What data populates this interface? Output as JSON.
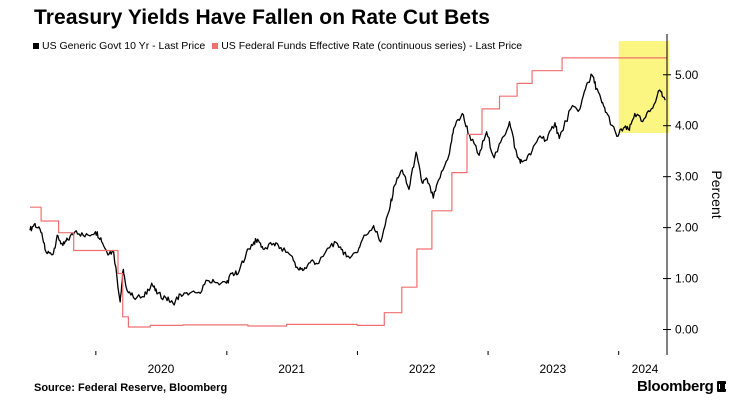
{
  "title": "Treasury Yields Have Fallen on Rate Cut Bets",
  "source": "Source: Federal Reserve, Bloomberg",
  "brand": "Bloomberg",
  "colors": {
    "series_10y": "#000000",
    "series_ffr": "#f07070",
    "highlight": "#fbf582",
    "axis": "#000000"
  },
  "chart_data": {
    "type": "line",
    "ylabel": "Percent",
    "ylim": [
      -0.5,
      5.8
    ],
    "yticks": [
      0,
      1,
      2,
      3,
      4,
      5
    ],
    "ytick_labels": [
      "0.00",
      "1.00",
      "2.00",
      "3.00",
      "4.00",
      "5.00"
    ],
    "xlim": [
      "2019-07-01",
      "2024-05-15"
    ],
    "xticks": [
      "2020",
      "2021",
      "2022",
      "2023",
      "2024"
    ],
    "highlight_range": [
      "2024-01-01",
      "2024-05-15"
    ],
    "grid": false,
    "legend_position": "top-left",
    "series": [
      {
        "name": "US Generic Govt 10 Yr - Last Price",
        "color": "#000000",
        "points": [
          [
            "2019-07-01",
            1.95
          ],
          [
            "2019-07-15",
            2.08
          ],
          [
            "2019-08-01",
            1.9
          ],
          [
            "2019-08-15",
            1.52
          ],
          [
            "2019-09-03",
            1.47
          ],
          [
            "2019-09-15",
            1.85
          ],
          [
            "2019-10-01",
            1.65
          ],
          [
            "2019-10-15",
            1.76
          ],
          [
            "2019-11-07",
            1.94
          ],
          [
            "2019-12-01",
            1.82
          ],
          [
            "2019-12-31",
            1.92
          ],
          [
            "2020-01-15",
            1.8
          ],
          [
            "2020-02-01",
            1.52
          ],
          [
            "2020-02-20",
            1.52
          ],
          [
            "2020-03-09",
            0.54
          ],
          [
            "2020-03-18",
            1.18
          ],
          [
            "2020-03-25",
            0.85
          ],
          [
            "2020-04-15",
            0.63
          ],
          [
            "2020-05-15",
            0.64
          ],
          [
            "2020-06-05",
            0.91
          ],
          [
            "2020-06-20",
            0.7
          ],
          [
            "2020-07-15",
            0.62
          ],
          [
            "2020-08-04",
            0.51
          ],
          [
            "2020-08-25",
            0.69
          ],
          [
            "2020-09-15",
            0.68
          ],
          [
            "2020-10-15",
            0.73
          ],
          [
            "2020-11-09",
            0.96
          ],
          [
            "2020-12-01",
            0.92
          ],
          [
            "2020-12-31",
            0.91
          ],
          [
            "2021-01-15",
            1.1
          ],
          [
            "2021-02-01",
            1.09
          ],
          [
            "2021-02-25",
            1.52
          ],
          [
            "2021-03-18",
            1.72
          ],
          [
            "2021-03-31",
            1.74
          ],
          [
            "2021-04-15",
            1.57
          ],
          [
            "2021-05-12",
            1.69
          ],
          [
            "2021-06-01",
            1.61
          ],
          [
            "2021-06-30",
            1.45
          ],
          [
            "2021-07-20",
            1.18
          ],
          [
            "2021-08-04",
            1.17
          ],
          [
            "2021-08-25",
            1.35
          ],
          [
            "2021-09-15",
            1.3
          ],
          [
            "2021-10-21",
            1.69
          ],
          [
            "2021-11-15",
            1.62
          ],
          [
            "2021-12-01",
            1.43
          ],
          [
            "2021-12-31",
            1.51
          ],
          [
            "2022-01-15",
            1.77
          ],
          [
            "2022-02-15",
            2.04
          ],
          [
            "2022-03-07",
            1.72
          ],
          [
            "2022-03-31",
            2.34
          ],
          [
            "2022-04-15",
            2.83
          ],
          [
            "2022-05-06",
            3.13
          ],
          [
            "2022-05-25",
            2.75
          ],
          [
            "2022-06-14",
            3.48
          ],
          [
            "2022-07-01",
            2.88
          ],
          [
            "2022-07-15",
            2.95
          ],
          [
            "2022-08-01",
            2.58
          ],
          [
            "2022-08-20",
            2.98
          ],
          [
            "2022-09-15",
            3.45
          ],
          [
            "2022-09-27",
            3.95
          ],
          [
            "2022-10-21",
            4.24
          ],
          [
            "2022-11-10",
            3.82
          ],
          [
            "2022-12-07",
            3.42
          ],
          [
            "2022-12-28",
            3.88
          ],
          [
            "2023-01-18",
            3.37
          ],
          [
            "2023-02-15",
            3.8
          ],
          [
            "2023-03-02",
            4.08
          ],
          [
            "2023-03-24",
            3.38
          ],
          [
            "2023-04-06",
            3.29
          ],
          [
            "2023-04-30",
            3.43
          ],
          [
            "2023-05-26",
            3.8
          ],
          [
            "2023-06-15",
            3.72
          ],
          [
            "2023-07-07",
            4.06
          ],
          [
            "2023-07-19",
            3.75
          ],
          [
            "2023-08-21",
            4.34
          ],
          [
            "2023-09-15",
            4.33
          ],
          [
            "2023-10-03",
            4.8
          ],
          [
            "2023-10-19",
            4.99
          ],
          [
            "2023-11-01",
            4.73
          ],
          [
            "2023-11-15",
            4.45
          ],
          [
            "2023-12-01",
            4.22
          ],
          [
            "2023-12-27",
            3.79
          ],
          [
            "2024-01-15",
            3.96
          ],
          [
            "2024-01-31",
            3.91
          ],
          [
            "2024-02-15",
            4.24
          ],
          [
            "2024-03-08",
            4.08
          ],
          [
            "2024-04-01",
            4.33
          ],
          [
            "2024-04-25",
            4.7
          ],
          [
            "2024-05-10",
            4.5
          ]
        ]
      },
      {
        "name": "US Federal Funds Effective Rate (continuous series) - Last Price",
        "color": "#f07070",
        "points": [
          [
            "2019-07-01",
            2.4
          ],
          [
            "2019-08-01",
            2.13
          ],
          [
            "2019-09-19",
            1.9
          ],
          [
            "2019-10-31",
            1.55
          ],
          [
            "2020-03-03",
            1.1
          ],
          [
            "2020-03-16",
            0.25
          ],
          [
            "2020-04-01",
            0.05
          ],
          [
            "2020-06-01",
            0.08
          ],
          [
            "2020-09-01",
            0.09
          ],
          [
            "2021-01-01",
            0.09
          ],
          [
            "2021-03-01",
            0.07
          ],
          [
            "2021-06-17",
            0.1
          ],
          [
            "2021-12-31",
            0.08
          ],
          [
            "2022-03-17",
            0.33
          ],
          [
            "2022-05-05",
            0.83
          ],
          [
            "2022-06-16",
            1.58
          ],
          [
            "2022-07-28",
            2.33
          ],
          [
            "2022-09-22",
            3.08
          ],
          [
            "2022-11-03",
            3.83
          ],
          [
            "2022-12-15",
            4.33
          ],
          [
            "2023-02-02",
            4.58
          ],
          [
            "2023-03-23",
            4.83
          ],
          [
            "2023-05-04",
            5.08
          ],
          [
            "2023-07-27",
            5.33
          ],
          [
            "2024-05-15",
            5.33
          ]
        ]
      }
    ]
  }
}
